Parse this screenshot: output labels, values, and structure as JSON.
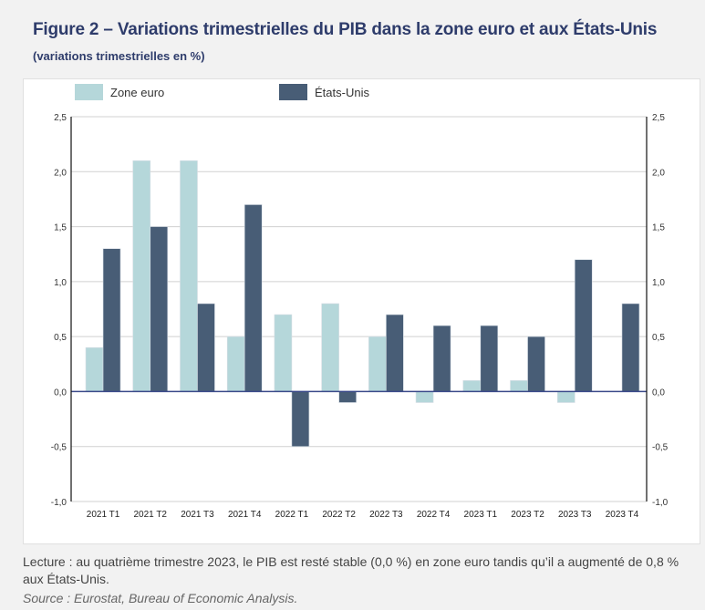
{
  "header": {
    "title": "Figure 2 – Variations trimestrielles du PIB dans la zone euro et aux États-Unis",
    "subtitle": "(variations trimestrielles en %)"
  },
  "footer": {
    "note": "Lecture : au quatrième trimestre 2023, le PIB est resté stable (0,0 %) en zone euro tandis qu’il a augmenté de 0,8 % aux États-Unis.",
    "source": "Source : Eurostat, Bureau of Economic Analysis."
  },
  "chart_data": {
    "type": "bar",
    "title": "Figure 2 – Variations trimestrielles du PIB dans la zone euro et aux États-Unis",
    "subtitle": "(variations trimestrielles en %)",
    "xlabel": "",
    "ylabel": "variations trimestrielles en %",
    "categories": [
      "2021 T1",
      "2021 T2",
      "2021 T3",
      "2021 T4",
      "2022 T1",
      "2022 T2",
      "2022 T3",
      "2022 T4",
      "2023 T1",
      "2023 T2",
      "2023 T3",
      "2023 T4"
    ],
    "series": [
      {
        "name": "Zone euro",
        "color": "#b5d7da",
        "values": [
          0.4,
          2.1,
          2.1,
          0.5,
          0.7,
          0.8,
          0.5,
          -0.1,
          0.1,
          0.1,
          -0.1,
          0.0
        ]
      },
      {
        "name": "États-Unis",
        "color": "#485d76",
        "values": [
          1.3,
          1.5,
          0.8,
          1.7,
          -0.5,
          -0.1,
          0.7,
          0.6,
          0.6,
          0.5,
          1.2,
          0.8
        ]
      }
    ],
    "ylim": [
      -1.0,
      2.5
    ],
    "yticks": [
      -1.0,
      -0.5,
      0.0,
      0.5,
      1.0,
      1.5,
      2.0,
      2.5
    ],
    "ytick_labels": [
      "-1,0",
      "-0,5",
      "0,0",
      "0,5",
      "1,0",
      "1,5",
      "2,0",
      "2,5"
    ],
    "secondary_axis": "right (same scale)",
    "grid": true,
    "legend": "top-left",
    "zero_line_color": "#3b4a8a"
  }
}
